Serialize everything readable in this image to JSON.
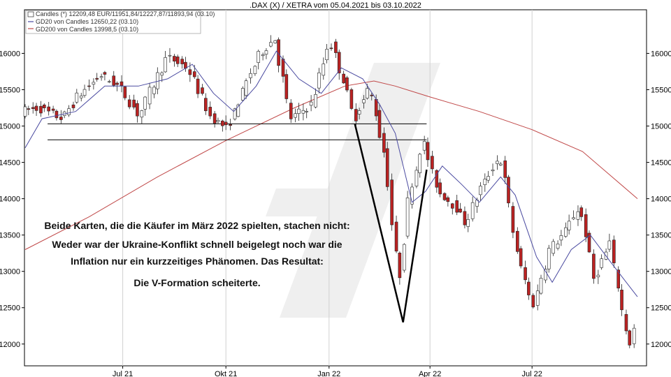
{
  "chart_data": {
    "type": "candlestick",
    "title": ".DAX (X) / XETRA vom 05.04.2021 bis 03.10.2022",
    "ylim": [
      11700,
      16600
    ],
    "y_ticks": [
      12000,
      12500,
      13000,
      13500,
      14000,
      14500,
      15000,
      15500,
      16000
    ],
    "y_tick_labels": [
      "12000",
      "12500",
      "13000",
      "13500",
      "14000",
      "14500",
      "15000",
      "15500",
      "16000"
    ],
    "x_range": [
      "2021-04-05",
      "2022-10-03"
    ],
    "x_ticks": [
      {
        "date": "2021-07-01",
        "label": "Jul 21"
      },
      {
        "date": "2021-10-01",
        "label": "Okt 21"
      },
      {
        "date": "2022-01-01",
        "label": "Jan 22"
      },
      {
        "date": "2022-04-01",
        "label": "Apr 22"
      },
      {
        "date": "2022-07-01",
        "label": "Jul 22"
      }
    ],
    "legend": [
      {
        "label": "Candles (*) 12209,48 EUR/11951,84/12227,87/11893,94 (03.10)",
        "color": "#555555"
      },
      {
        "label": "GD20 von Candles 12650,22 (03.10)",
        "color": "#5555aa"
      },
      {
        "label": "GD200 von Candles 13998,5 (03.10)",
        "color": "#c05050"
      }
    ],
    "colors": {
      "up": "#ffffff",
      "down": "#bb2222",
      "gd20": "#4a4aa0",
      "gd200": "#c04848",
      "watermark": "#efefef"
    },
    "price_path": [
      [
        "2021-04-05",
        15200
      ],
      [
        "2021-04-20",
        15250
      ],
      [
        "2021-05-12",
        15100
      ],
      [
        "2021-05-25",
        15400
      ],
      [
        "2021-06-15",
        15700
      ],
      [
        "2021-07-01",
        15550
      ],
      [
        "2021-07-19",
        15150
      ],
      [
        "2021-08-05",
        15700
      ],
      [
        "2021-08-13",
        15950
      ],
      [
        "2021-09-01",
        15800
      ],
      [
        "2021-09-20",
        15150
      ],
      [
        "2021-10-06",
        14950
      ],
      [
        "2021-10-20",
        15500
      ],
      [
        "2021-11-04",
        16000
      ],
      [
        "2021-11-17",
        16200
      ],
      [
        "2021-12-01",
        15100
      ],
      [
        "2021-12-20",
        15300
      ],
      [
        "2022-01-05",
        16200
      ],
      [
        "2022-01-20",
        15500
      ],
      [
        "2022-01-27",
        15100
      ],
      [
        "2022-02-10",
        15550
      ],
      [
        "2022-02-24",
        14500
      ],
      [
        "2022-03-08",
        12800
      ],
      [
        "2022-03-15",
        13900
      ],
      [
        "2022-03-29",
        14800
      ],
      [
        "2022-04-12",
        14100
      ],
      [
        "2022-04-27",
        13900
      ],
      [
        "2022-05-06",
        13650
      ],
      [
        "2022-05-20",
        14150
      ],
      [
        "2022-06-06",
        14600
      ],
      [
        "2022-06-22",
        13200
      ],
      [
        "2022-07-05",
        12500
      ],
      [
        "2022-07-20",
        13300
      ],
      [
        "2022-08-01",
        13500
      ],
      [
        "2022-08-16",
        13900
      ],
      [
        "2022-08-29",
        12900
      ],
      [
        "2022-09-12",
        13400
      ],
      [
        "2022-09-29",
        11950
      ],
      [
        "2022-10-03",
        12200
      ]
    ],
    "gd20_path": [
      [
        "2021-04-05",
        14700
      ],
      [
        "2021-04-20",
        15100
      ],
      [
        "2021-05-20",
        15200
      ],
      [
        "2021-06-15",
        15550
      ],
      [
        "2021-07-15",
        15550
      ],
      [
        "2021-08-10",
        15650
      ],
      [
        "2021-09-01",
        15850
      ],
      [
        "2021-09-20",
        15450
      ],
      [
        "2021-10-08",
        15200
      ],
      [
        "2021-10-28",
        15550
      ],
      [
        "2021-11-15",
        16030
      ],
      [
        "2021-12-05",
        15650
      ],
      [
        "2021-12-25",
        15450
      ],
      [
        "2022-01-12",
        15800
      ],
      [
        "2022-01-31",
        15650
      ],
      [
        "2022-02-15",
        15300
      ],
      [
        "2022-03-01",
        14900
      ],
      [
        "2022-03-16",
        13950
      ],
      [
        "2022-03-28",
        14100
      ],
      [
        "2022-04-12",
        14450
      ],
      [
        "2022-04-29",
        14200
      ],
      [
        "2022-05-15",
        13950
      ],
      [
        "2022-06-03",
        14300
      ],
      [
        "2022-06-16",
        14050
      ],
      [
        "2022-07-05",
        13200
      ],
      [
        "2022-07-19",
        12850
      ],
      [
        "2022-08-05",
        13300
      ],
      [
        "2022-08-22",
        13500
      ],
      [
        "2022-09-08",
        13150
      ],
      [
        "2022-10-03",
        12650
      ]
    ],
    "gd200_path": [
      [
        "2021-04-05",
        13300
      ],
      [
        "2021-06-01",
        13750
      ],
      [
        "2021-08-01",
        14300
      ],
      [
        "2021-10-01",
        14800
      ],
      [
        "2021-12-01",
        15250
      ],
      [
        "2022-01-15",
        15550
      ],
      [
        "2022-02-10",
        15620
      ],
      [
        "2022-03-01",
        15550
      ],
      [
        "2022-04-01",
        15400
      ],
      [
        "2022-05-15",
        15200
      ],
      [
        "2022-07-01",
        14950
      ],
      [
        "2022-08-15",
        14650
      ],
      [
        "2022-10-03",
        14000
      ]
    ],
    "support_lines": [
      {
        "from": "2021-04-25",
        "to": "2022-03-29",
        "value": 15030
      },
      {
        "from": "2021-04-25",
        "to": "2022-03-29",
        "value": 14810
      }
    ],
    "v_formation": [
      [
        "2022-01-24",
        15030
      ],
      [
        "2022-03-08",
        12300
      ],
      [
        "2022-03-29",
        14400
      ]
    ],
    "annotation": [
      "Beide Karten, die die Käufer im März 2022 spielten, stachen nicht:",
      "Weder war der Ukraine-Konflikt schnell beigelegt noch war die",
      "Inflation nur ein kurzzeitiges Phänomen. Das Resultat:",
      "Die V-Formation scheiterte."
    ]
  }
}
